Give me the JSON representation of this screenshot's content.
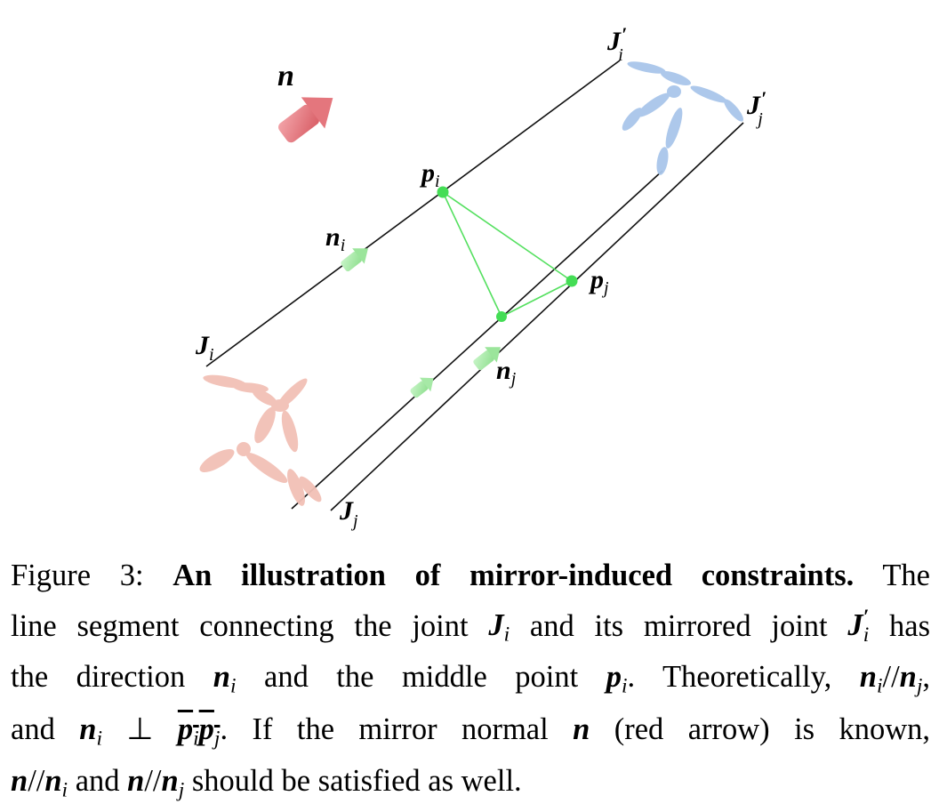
{
  "figure": {
    "labels": {
      "n": "n",
      "J_i": "J",
      "J_i_sub": "i",
      "J_i_prime": "J",
      "J_i_prime_sub": "i",
      "J_i_prime_mark": "′",
      "J_j": "J",
      "J_j_sub": "j",
      "J_j_prime": "J",
      "J_j_prime_sub": "j",
      "J_j_prime_mark": "′",
      "p_i": "p",
      "p_i_sub": "i",
      "p_j": "p",
      "p_j_sub": "j",
      "n_i": "n",
      "n_i_sub": "i",
      "n_j": "n",
      "n_j_sub": "j"
    },
    "colors": {
      "mirror_normal_arrow": "#e8777e",
      "joint_arrows": "#a6e9a6",
      "midpoints": "#44dd55",
      "original_skeleton": "#f2c0b6",
      "mirrored_skeleton": "#a9c6ea",
      "lines": "#111111"
    }
  },
  "caption": {
    "prefix": "Figure 3:",
    "bold_title": "An illustration of mirror-induced constraints.",
    "line1_tail": "The",
    "line2_a": "line segment connecting the joint",
    "line2_J": "J",
    "line2_J_sub": "i",
    "line2_b": "and its mirrored joint",
    "line2_Jp": "J",
    "line2_Jp_sup": "′",
    "line2_Jp_sub": "i",
    "line2_c": "has",
    "line3_a": "the direction",
    "line3_n": "n",
    "line3_n_sub": "i",
    "line3_b": "and the middle point",
    "line3_p": "p",
    "line3_p_sub": "i",
    "line3_c": ". Theoretically,",
    "line3_n2": "n",
    "line3_n2_sub": "i",
    "line3_par": "//",
    "line3_n3": "n",
    "line3_n3_sub": "j",
    "line3_d": ",",
    "line4_a": "and",
    "line4_n": "n",
    "line4_n_sub": "i",
    "line4_perp": "⊥",
    "line4_p1": "p",
    "line4_p1_sub": "i",
    "line4_p2": "p",
    "line4_p2_sub": "j",
    "line4_b": ". If the mirror normal",
    "line4_n2": "n",
    "line4_c": "(red arrow) is known,",
    "line5_n": "n",
    "line5_par": "//",
    "line5_n2": "n",
    "line5_n2_sub": "i",
    "line5_a": "and",
    "line5_n3": "n",
    "line5_par2": "//",
    "line5_n4": "n",
    "line5_n4_sub": "j",
    "line5_b": "should be satisfied as well."
  }
}
